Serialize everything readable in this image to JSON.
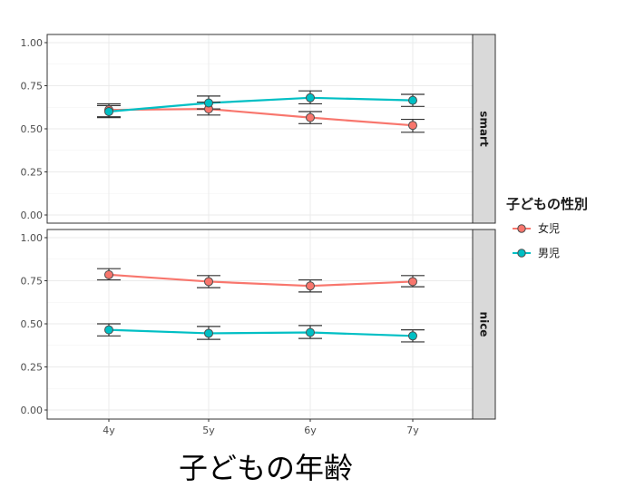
{
  "chart_data": {
    "type": "line",
    "x_title": "子どもの年齢",
    "categories": [
      "4y",
      "5y",
      "6y",
      "7y"
    ],
    "y_ticks": [
      "0.00",
      "0.25",
      "0.50",
      "0.75",
      "1.00"
    ],
    "ylim": [
      0,
      1
    ],
    "grid": true,
    "error_bars": true,
    "legend": {
      "title": "子どもの性別",
      "position": "right",
      "entries": [
        {
          "label": "女児",
          "color": "#F8766D"
        },
        {
          "label": "男児",
          "color": "#00BFC4"
        }
      ]
    },
    "facets": [
      {
        "label": "smart",
        "series": [
          {
            "name": "女児",
            "values": [
              0.61,
              0.615,
              0.565,
              0.52
            ],
            "err_low": [
              0.57,
              0.58,
              0.53,
              0.48
            ],
            "err_high": [
              0.645,
              0.655,
              0.6,
              0.555
            ]
          },
          {
            "name": "男児",
            "values": [
              0.6,
              0.65,
              0.68,
              0.665
            ],
            "err_low": [
              0.565,
              0.615,
              0.645,
              0.63
            ],
            "err_high": [
              0.635,
              0.69,
              0.72,
              0.7
            ]
          }
        ]
      },
      {
        "label": "nice",
        "series": [
          {
            "name": "女児",
            "values": [
              0.785,
              0.745,
              0.72,
              0.745
            ],
            "err_low": [
              0.755,
              0.71,
              0.685,
              0.715
            ],
            "err_high": [
              0.82,
              0.78,
              0.755,
              0.78
            ]
          },
          {
            "name": "男児",
            "values": [
              0.465,
              0.445,
              0.45,
              0.43
            ],
            "err_low": [
              0.43,
              0.41,
              0.415,
              0.395
            ],
            "err_high": [
              0.5,
              0.485,
              0.49,
              0.465
            ]
          }
        ]
      }
    ]
  }
}
